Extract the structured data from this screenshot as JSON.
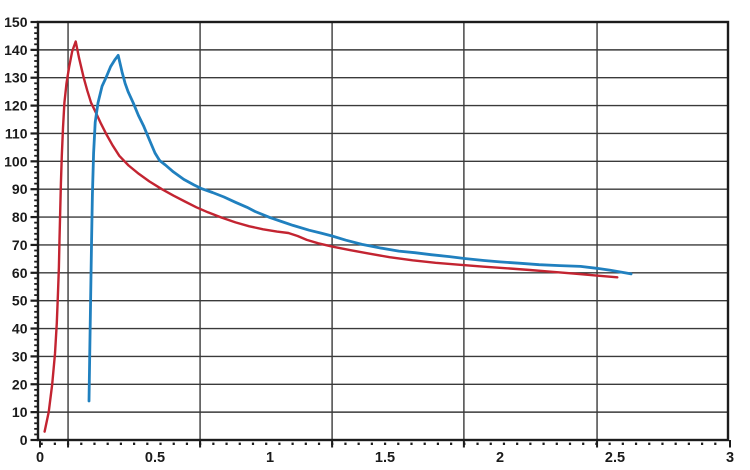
{
  "figure": {
    "background": "#ffffff"
  },
  "chart_data": {
    "type": "line",
    "title": "",
    "xlabel": "",
    "ylabel": "",
    "xlim": [
      0,
      3
    ],
    "ylim": [
      0,
      150
    ],
    "grid_on": true,
    "legend_position": "none",
    "axis_color": "#1c1c1c",
    "grid_color": "#3a3a3a",
    "label_color": "#1a1a1a",
    "x_tick_labels": [
      "0",
      "0.5",
      "1",
      "1.5",
      "2",
      "2.5",
      "3"
    ],
    "x_tick_values": [
      0,
      0.5,
      1,
      1.5,
      2,
      2.5,
      3
    ],
    "y_tick_labels": [
      "0",
      "10",
      "20",
      "30",
      "40",
      "50",
      "60",
      "70",
      "80",
      "90",
      "100",
      "110",
      "120",
      "130",
      "140",
      "150"
    ],
    "y_tick_values": [
      0,
      10,
      20,
      30,
      40,
      50,
      60,
      70,
      80,
      90,
      100,
      110,
      120,
      130,
      140,
      150
    ],
    "y_minor_tick_step": 2,
    "h_gridline_values": [
      10,
      20,
      30,
      40,
      50,
      60,
      70,
      80,
      90,
      100,
      110,
      120,
      130,
      140
    ],
    "v_gridline_positions": [
      0.122,
      0.696,
      1.27,
      1.843,
      2.422
    ],
    "x_major_tick_positions": [
      0,
      0.122,
      0.696,
      1.27,
      1.843,
      2.422,
      3
    ],
    "x_minor_tick_step": 0.05743,
    "series": [
      {
        "name": "red curve",
        "color": "#c32431",
        "width": 2.4,
        "points": [
          [
            0.02,
            3
          ],
          [
            0.038,
            10
          ],
          [
            0.053,
            20
          ],
          [
            0.065,
            31
          ],
          [
            0.073,
            42
          ],
          [
            0.078,
            52
          ],
          [
            0.082,
            62
          ],
          [
            0.085,
            72
          ],
          [
            0.088,
            82
          ],
          [
            0.091,
            92
          ],
          [
            0.095,
            102
          ],
          [
            0.1,
            112
          ],
          [
            0.106,
            121
          ],
          [
            0.115,
            128
          ],
          [
            0.127,
            134
          ],
          [
            0.14,
            139.5
          ],
          [
            0.155,
            143
          ],
          [
            0.17,
            137
          ],
          [
            0.19,
            130
          ],
          [
            0.205,
            125.5
          ],
          [
            0.222,
            121
          ],
          [
            0.24,
            118
          ],
          [
            0.265,
            113.5
          ],
          [
            0.29,
            109.5
          ],
          [
            0.315,
            105.8
          ],
          [
            0.345,
            102
          ],
          [
            0.385,
            98.5
          ],
          [
            0.43,
            95.5
          ],
          [
            0.475,
            92.8
          ],
          [
            0.53,
            90
          ],
          [
            0.58,
            87.7
          ],
          [
            0.63,
            85.6
          ],
          [
            0.68,
            83.5
          ],
          [
            0.73,
            81.7
          ],
          [
            0.79,
            79.8
          ],
          [
            0.85,
            78.1
          ],
          [
            0.91,
            76.7
          ],
          [
            0.97,
            75.6
          ],
          [
            1.03,
            74.8
          ],
          [
            1.08,
            74.3
          ],
          [
            1.12,
            73.2
          ],
          [
            1.16,
            71.8
          ],
          [
            1.21,
            70.6
          ],
          [
            1.27,
            69.4
          ],
          [
            1.35,
            68.1
          ],
          [
            1.43,
            66.9
          ],
          [
            1.52,
            65.6
          ],
          [
            1.62,
            64.5
          ],
          [
            1.72,
            63.6
          ],
          [
            1.82,
            62.9
          ],
          [
            1.93,
            62.2
          ],
          [
            2.03,
            61.6
          ],
          [
            2.13,
            61.0
          ],
          [
            2.22,
            60.4
          ],
          [
            2.32,
            59.7
          ],
          [
            2.42,
            59.0
          ],
          [
            2.51,
            58.4
          ]
        ]
      },
      {
        "name": "blue curve",
        "color": "#2080bf",
        "width": 2.8,
        "points": [
          [
            0.213,
            14
          ],
          [
            0.216,
            30
          ],
          [
            0.22,
            50
          ],
          [
            0.224,
            70
          ],
          [
            0.228,
            88
          ],
          [
            0.233,
            103
          ],
          [
            0.24,
            114
          ],
          [
            0.252,
            121
          ],
          [
            0.27,
            127
          ],
          [
            0.287,
            130
          ],
          [
            0.307,
            134
          ],
          [
            0.327,
            136.6
          ],
          [
            0.34,
            138
          ],
          [
            0.357,
            132
          ],
          [
            0.37,
            128
          ],
          [
            0.383,
            125
          ],
          [
            0.405,
            121
          ],
          [
            0.428,
            116.5
          ],
          [
            0.45,
            112.8
          ],
          [
            0.478,
            107.3
          ],
          [
            0.5,
            103
          ],
          [
            0.52,
            100.3
          ],
          [
            0.545,
            98.7
          ],
          [
            0.58,
            96.2
          ],
          [
            0.625,
            93.5
          ],
          [
            0.67,
            91.5
          ],
          [
            0.7,
            90.3
          ],
          [
            0.75,
            88.8
          ],
          [
            0.8,
            87.2
          ],
          [
            0.85,
            85.3
          ],
          [
            0.9,
            83.5
          ],
          [
            0.935,
            82.0
          ],
          [
            1.0,
            79.8
          ],
          [
            1.05,
            78.4
          ],
          [
            1.1,
            77.0
          ],
          [
            1.17,
            75.3
          ],
          [
            1.22,
            74.3
          ],
          [
            1.27,
            73.2
          ],
          [
            1.33,
            71.7
          ],
          [
            1.4,
            70.2
          ],
          [
            1.48,
            68.9
          ],
          [
            1.56,
            67.8
          ],
          [
            1.63,
            67.2
          ],
          [
            1.7,
            66.5
          ],
          [
            1.78,
            65.8
          ],
          [
            1.85,
            65.1
          ],
          [
            1.93,
            64.4
          ],
          [
            2.0,
            63.9
          ],
          [
            2.09,
            63.4
          ],
          [
            2.17,
            62.9
          ],
          [
            2.26,
            62.6
          ],
          [
            2.35,
            62.3
          ],
          [
            2.42,
            61.6
          ],
          [
            2.48,
            60.9
          ],
          [
            2.53,
            60.2
          ],
          [
            2.57,
            59.6
          ]
        ]
      }
    ]
  }
}
